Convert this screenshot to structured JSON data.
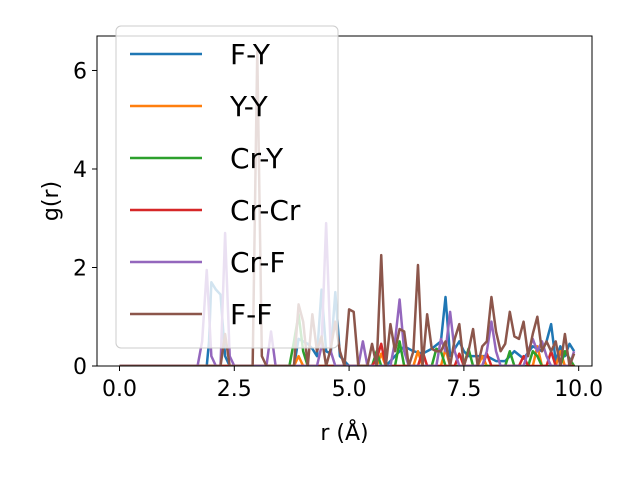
{
  "chart_data": {
    "type": "line",
    "title": "",
    "xlabel": "r (Å)",
    "ylabel": "g(r)",
    "xlim": [
      -0.49,
      10.29
    ],
    "ylim": [
      0,
      6.7
    ],
    "xticks": [
      0.0,
      2.5,
      5.0,
      7.5,
      10.0
    ],
    "xtick_labels": [
      "0.0",
      "2.5",
      "5.0",
      "7.5",
      "10.0"
    ],
    "yticks": [
      0,
      2,
      4,
      6
    ],
    "ytick_labels": [
      "0",
      "2",
      "4",
      "6"
    ],
    "grid": false,
    "legend_position": "top-left",
    "series": [
      {
        "name": "F-Y",
        "color": "#1f77b4",
        "x": [
          0.0,
          1.8,
          1.9,
          1.95,
          2.0,
          2.1,
          2.2,
          2.3,
          2.4,
          2.5,
          2.6,
          2.7,
          2.8,
          2.9,
          3.0,
          3.1,
          3.2,
          3.3,
          3.4,
          3.5,
          3.6,
          3.7,
          3.8,
          3.9,
          4.0,
          4.1,
          4.2,
          4.3,
          4.4,
          4.5,
          4.6,
          4.7,
          4.8,
          4.9,
          5.0,
          5.2,
          5.4,
          5.6,
          5.8,
          6.0,
          6.2,
          6.4,
          6.6,
          6.8,
          7.0,
          7.1,
          7.2,
          7.3,
          7.4,
          7.5,
          7.6,
          7.8,
          8.0,
          8.2,
          8.4,
          8.6,
          8.8,
          9.0,
          9.2,
          9.3,
          9.4,
          9.5,
          9.6,
          9.7,
          9.8,
          9.9
        ],
        "y": [
          0,
          0,
          0,
          0.5,
          1.7,
          1.55,
          1.45,
          0.2,
          0,
          0,
          0,
          0,
          0,
          0,
          0,
          0,
          0,
          0,
          0,
          0,
          0,
          0,
          0,
          0.55,
          0.5,
          0.45,
          0.35,
          0.2,
          1.55,
          0.3,
          0.25,
          1.5,
          0.2,
          0.1,
          0,
          0,
          0,
          0,
          0,
          0.2,
          0.4,
          0.3,
          0.25,
          0.35,
          0.5,
          1.4,
          0.2,
          0.35,
          0.5,
          0.3,
          0.2,
          0.2,
          0.2,
          0.1,
          0.1,
          0.3,
          0.15,
          0.4,
          0.3,
          0.5,
          0.85,
          0.1,
          0.4,
          0.2,
          0.45,
          0.3
        ]
      },
      {
        "name": "Y-Y",
        "color": "#ff7f0e",
        "x": [
          0.0,
          3.8,
          3.9,
          4.0,
          4.1,
          5.6,
          5.7,
          5.8,
          6.4,
          6.5,
          6.6,
          7.0,
          7.1,
          7.2,
          7.8,
          7.9,
          8.0,
          9.0,
          9.1,
          9.2,
          9.5,
          9.6,
          9.7,
          9.9
        ],
        "y": [
          0,
          0,
          0.2,
          0,
          0,
          0,
          0.25,
          0,
          0,
          0.3,
          0,
          0,
          0.35,
          0,
          0,
          0.2,
          0,
          0,
          0.4,
          0,
          0,
          0.3,
          0,
          0
        ]
      },
      {
        "name": "Cr-Y",
        "color": "#2ca02c",
        "x": [
          0.0,
          3.6,
          3.7,
          3.8,
          3.9,
          4.0,
          4.1,
          5.5,
          5.6,
          5.7,
          6.0,
          6.1,
          6.2,
          6.8,
          6.9,
          7.0,
          7.1,
          7.5,
          7.6,
          7.7,
          8.4,
          8.5,
          8.6,
          8.9,
          9.0,
          9.1,
          9.2,
          9.6,
          9.7,
          9.9
        ],
        "y": [
          0,
          0,
          0,
          0.5,
          1.05,
          0.3,
          0,
          0,
          0.3,
          0,
          0,
          0.5,
          0,
          0,
          0.35,
          0.3,
          0,
          0,
          0.35,
          0,
          0,
          0.3,
          0,
          0,
          0.3,
          0.2,
          0,
          0,
          0.3,
          0
        ]
      },
      {
        "name": "Cr-Cr",
        "color": "#d62728",
        "x": [
          0.0,
          5.5,
          5.6,
          5.7,
          5.8,
          6.5,
          6.6,
          6.7,
          7.3,
          7.4,
          7.5,
          7.9,
          8.0,
          8.1,
          8.7,
          8.8,
          8.9,
          9.3,
          9.4,
          9.5,
          9.9
        ],
        "y": [
          0,
          0,
          0.15,
          0.45,
          0,
          0,
          0.3,
          0,
          0,
          0.25,
          0,
          0,
          0.25,
          0,
          0,
          0.2,
          0,
          0,
          0.3,
          0,
          0
        ]
      },
      {
        "name": "Cr-F",
        "color": "#9467bd",
        "x": [
          0.0,
          1.7,
          1.8,
          1.9,
          2.0,
          2.1,
          2.2,
          2.3,
          2.4,
          2.5,
          3.2,
          3.3,
          3.4,
          4.3,
          4.4,
          4.5,
          4.6,
          4.7,
          4.8,
          5.2,
          5.3,
          5.4,
          5.9,
          6.0,
          6.1,
          6.2,
          6.3,
          6.9,
          7.0,
          7.1,
          7.2,
          7.3,
          7.4,
          7.9,
          8.0,
          8.1,
          8.2,
          8.3,
          8.8,
          8.9,
          9.0,
          9.1,
          9.2,
          9.3,
          9.4,
          9.8,
          9.9
        ],
        "y": [
          0,
          0,
          0.5,
          1.95,
          0.2,
          0,
          0,
          2.7,
          0.2,
          0,
          0,
          0.7,
          0,
          0,
          0.4,
          2.9,
          0.3,
          0,
          0,
          0,
          0.5,
          0,
          0,
          0.5,
          1.35,
          0.3,
          0,
          0,
          0.55,
          0.3,
          1.1,
          0.3,
          0,
          0,
          0.3,
          0.9,
          0.3,
          0,
          0,
          0.3,
          0.55,
          0.3,
          0.5,
          0.2,
          0,
          0,
          0.3
        ]
      },
      {
        "name": "F-F",
        "color": "#8c564b",
        "x": [
          0.0,
          2.1,
          2.2,
          2.3,
          2.4,
          2.9,
          3.0,
          3.1,
          3.2,
          3.8,
          3.9,
          4.0,
          4.1,
          4.2,
          4.3,
          4.4,
          4.5,
          4.6,
          4.7,
          4.8,
          4.9,
          5.0,
          5.1,
          5.2,
          5.4,
          5.5,
          5.6,
          5.7,
          5.8,
          5.9,
          6.0,
          6.1,
          6.2,
          6.3,
          6.4,
          6.5,
          6.6,
          6.7,
          6.8,
          6.9,
          7.0,
          7.1,
          7.2,
          7.3,
          7.4,
          7.5,
          7.6,
          7.7,
          7.8,
          7.9,
          8.0,
          8.1,
          8.2,
          8.3,
          8.4,
          8.5,
          8.6,
          8.7,
          8.8,
          8.9,
          9.0,
          9.1,
          9.2,
          9.3,
          9.4,
          9.5,
          9.6,
          9.7,
          9.8,
          9.9
        ],
        "y": [
          0,
          0,
          0,
          0.65,
          0,
          0,
          6.4,
          0.2,
          0,
          0,
          1.25,
          0.9,
          0,
          1.05,
          0.3,
          0.6,
          0,
          0.35,
          0.9,
          0.3,
          0,
          1.15,
          1.1,
          0,
          0,
          0.45,
          0,
          2.25,
          0,
          0.85,
          0.3,
          0.75,
          0.7,
          0,
          0.3,
          2.05,
          0,
          1.05,
          0.35,
          0.3,
          0.3,
          0.5,
          0,
          0.55,
          0.85,
          0,
          0.3,
          0.75,
          0,
          0.4,
          0.5,
          1.4,
          0.7,
          0.3,
          0.45,
          1.1,
          0.6,
          0.55,
          0.9,
          0.2,
          0.65,
          1.0,
          0.3,
          0.5,
          0.3,
          0.5,
          0,
          0.65,
          0,
          0.25
        ]
      }
    ]
  }
}
